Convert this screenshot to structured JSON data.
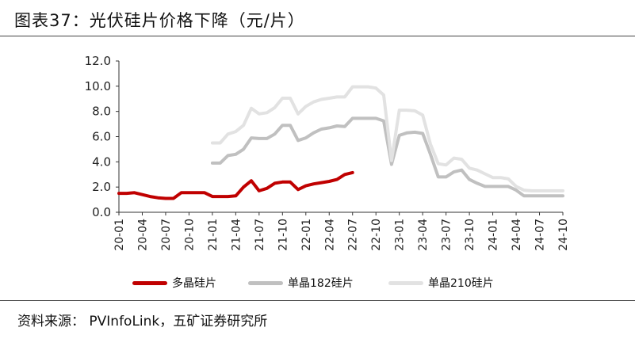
{
  "title": "图表37：光伏硅片价格下降（元/片）",
  "source": "资料来源：  PVInfoLink，五矿证券研究所",
  "chart_data": {
    "type": "line",
    "title": "光伏硅片价格下降",
    "unit": "元/片",
    "xlabel": "",
    "ylabel": "",
    "ylim": [
      0,
      12
    ],
    "yticks": [
      "0.0",
      "2.0",
      "4.0",
      "6.0",
      "8.0",
      "10.0",
      "12.0"
    ],
    "x_range": [
      "2020-01",
      "2024-10"
    ],
    "xticks": [
      "20-01",
      "20-04",
      "20-07",
      "20-10",
      "21-01",
      "21-04",
      "21-07",
      "21-10",
      "22-01",
      "22-04",
      "22-07",
      "22-10",
      "23-01",
      "23-04",
      "23-07",
      "23-10",
      "24-01",
      "24-04",
      "24-07",
      "24-10"
    ],
    "grid": false,
    "legend_position": "bottom",
    "series": [
      {
        "name": "多晶硅片",
        "color": "#c00000",
        "points": [
          [
            "2020-01",
            1.5
          ],
          [
            "2020-02",
            1.5
          ],
          [
            "2020-03",
            1.55
          ],
          [
            "2020-04",
            1.4
          ],
          [
            "2020-05",
            1.25
          ],
          [
            "2020-06",
            1.15
          ],
          [
            "2020-07",
            1.1
          ],
          [
            "2020-08",
            1.1
          ],
          [
            "2020-09",
            1.55
          ],
          [
            "2020-10",
            1.55
          ],
          [
            "2020-11",
            1.55
          ],
          [
            "2020-12",
            1.55
          ],
          [
            "2021-01",
            1.25
          ],
          [
            "2021-02",
            1.25
          ],
          [
            "2021-03",
            1.25
          ],
          [
            "2021-04",
            1.3
          ],
          [
            "2021-05",
            2.0
          ],
          [
            "2021-06",
            2.5
          ],
          [
            "2021-07",
            1.7
          ],
          [
            "2021-08",
            1.9
          ],
          [
            "2021-09",
            2.3
          ],
          [
            "2021-10",
            2.4
          ],
          [
            "2021-11",
            2.4
          ],
          [
            "2021-12",
            1.8
          ],
          [
            "2022-01",
            2.1
          ],
          [
            "2022-02",
            2.25
          ],
          [
            "2022-03",
            2.35
          ],
          [
            "2022-04",
            2.45
          ],
          [
            "2022-05",
            2.6
          ],
          [
            "2022-06",
            3.0
          ],
          [
            "2022-07",
            3.15
          ]
        ]
      },
      {
        "name": "单晶182硅片",
        "color": "#c0c0c0",
        "points": [
          [
            "2021-01",
            3.9
          ],
          [
            "2021-02",
            3.9
          ],
          [
            "2021-03",
            4.5
          ],
          [
            "2021-04",
            4.6
          ],
          [
            "2021-05",
            5.0
          ],
          [
            "2021-06",
            5.9
          ],
          [
            "2021-07",
            5.85
          ],
          [
            "2021-08",
            5.85
          ],
          [
            "2021-09",
            6.2
          ],
          [
            "2021-10",
            6.9
          ],
          [
            "2021-11",
            6.9
          ],
          [
            "2021-12",
            5.7
          ],
          [
            "2022-01",
            5.9
          ],
          [
            "2022-02",
            6.3
          ],
          [
            "2022-03",
            6.6
          ],
          [
            "2022-04",
            6.7
          ],
          [
            "2022-05",
            6.85
          ],
          [
            "2022-06",
            6.8
          ],
          [
            "2022-07",
            7.45
          ],
          [
            "2022-08",
            7.45
          ],
          [
            "2022-09",
            7.45
          ],
          [
            "2022-10",
            7.45
          ],
          [
            "2022-11",
            7.25
          ],
          [
            "2022-12",
            3.8
          ],
          [
            "2023-01",
            6.1
          ],
          [
            "2023-02",
            6.3
          ],
          [
            "2023-03",
            6.35
          ],
          [
            "2023-04",
            6.25
          ],
          [
            "2023-05",
            4.6
          ],
          [
            "2023-06",
            2.8
          ],
          [
            "2023-07",
            2.8
          ],
          [
            "2023-08",
            3.2
          ],
          [
            "2023-09",
            3.35
          ],
          [
            "2023-10",
            2.6
          ],
          [
            "2023-11",
            2.3
          ],
          [
            "2023-12",
            2.05
          ],
          [
            "2024-01",
            2.05
          ],
          [
            "2024-02",
            2.05
          ],
          [
            "2024-03",
            2.05
          ],
          [
            "2024-04",
            1.75
          ],
          [
            "2024-05",
            1.3
          ],
          [
            "2024-06",
            1.3
          ],
          [
            "2024-07",
            1.3
          ],
          [
            "2024-08",
            1.3
          ],
          [
            "2024-09",
            1.3
          ],
          [
            "2024-10",
            1.3
          ]
        ]
      },
      {
        "name": "单晶210硅片",
        "color": "#e2e2e2",
        "points": [
          [
            "2021-01",
            5.5
          ],
          [
            "2021-02",
            5.5
          ],
          [
            "2021-03",
            6.2
          ],
          [
            "2021-04",
            6.4
          ],
          [
            "2021-05",
            6.9
          ],
          [
            "2021-06",
            8.25
          ],
          [
            "2021-07",
            7.8
          ],
          [
            "2021-08",
            7.9
          ],
          [
            "2021-09",
            8.3
          ],
          [
            "2021-10",
            9.05
          ],
          [
            "2021-11",
            9.05
          ],
          [
            "2021-12",
            7.8
          ],
          [
            "2022-01",
            8.4
          ],
          [
            "2022-02",
            8.75
          ],
          [
            "2022-03",
            8.95
          ],
          [
            "2022-04",
            9.05
          ],
          [
            "2022-05",
            9.15
          ],
          [
            "2022-06",
            9.15
          ],
          [
            "2022-07",
            9.95
          ],
          [
            "2022-08",
            9.95
          ],
          [
            "2022-09",
            9.95
          ],
          [
            "2022-10",
            9.85
          ],
          [
            "2022-11",
            9.3
          ],
          [
            "2022-12",
            4.1
          ],
          [
            "2023-01",
            8.1
          ],
          [
            "2023-02",
            8.1
          ],
          [
            "2023-03",
            8.05
          ],
          [
            "2023-04",
            7.7
          ],
          [
            "2023-05",
            5.4
          ],
          [
            "2023-06",
            3.85
          ],
          [
            "2023-07",
            3.75
          ],
          [
            "2023-08",
            4.3
          ],
          [
            "2023-09",
            4.2
          ],
          [
            "2023-10",
            3.5
          ],
          [
            "2023-11",
            3.35
          ],
          [
            "2023-12",
            3.05
          ],
          [
            "2024-01",
            2.75
          ],
          [
            "2024-02",
            2.75
          ],
          [
            "2024-03",
            2.65
          ],
          [
            "2024-04",
            2.05
          ],
          [
            "2024-05",
            1.75
          ],
          [
            "2024-06",
            1.7
          ],
          [
            "2024-07",
            1.7
          ],
          [
            "2024-08",
            1.7
          ],
          [
            "2024-09",
            1.7
          ],
          [
            "2024-10",
            1.7
          ]
        ]
      }
    ]
  }
}
